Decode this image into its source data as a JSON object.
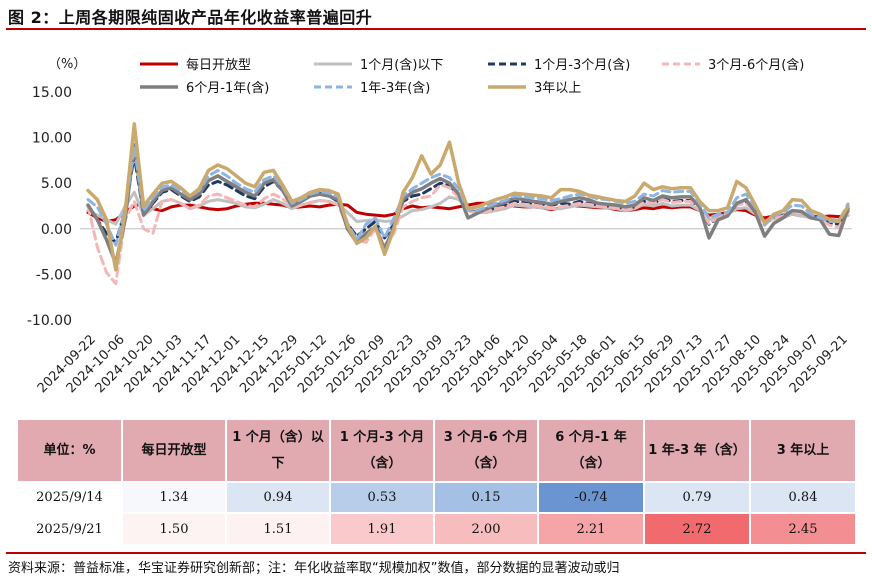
{
  "title": "图 2：上周各期限纯固收产品年化收益率普遍回升",
  "source": "资料来源：普益标准，华宝证券研究创新部；注：年化收益率取“规模加权”数值，部分数据的显著波动或归",
  "chart_data": {
    "type": "line",
    "ylabel": "（%）",
    "ylim": [
      -10,
      15
    ],
    "yticks": [
      "15.00",
      "10.00",
      "5.00",
      "0.00",
      "-5.00",
      "-10.00"
    ],
    "xtick_labels": [
      "2024-09-22",
      "2024-10-06",
      "2024-10-20",
      "2024-11-03",
      "2024-11-17",
      "2024-12-01",
      "2024-12-15",
      "2024-12-29",
      "2025-01-12",
      "2025-01-26",
      "2025-02-09",
      "2025-02-23",
      "2025-03-09",
      "2025-03-23",
      "2025-04-06",
      "2025-04-20",
      "2025-05-04",
      "2025-05-18",
      "2025-06-01",
      "2025-06-15",
      "2025-06-29",
      "2025-07-13",
      "2025-07-27",
      "2025-08-10",
      "2025-08-24",
      "2025-09-07",
      "2025-09-21"
    ],
    "x_start": "2024-09-22",
    "x_end": "2025-09-21",
    "series": [
      {
        "name": "每日开放型",
        "color": "#c00000",
        "dash": "solid",
        "width": 3,
        "values": [
          1.8,
          1.2,
          0.8,
          1.0,
          1.8,
          2.5,
          2.8,
          2.2,
          2.0,
          2.4,
          2.6,
          2.6,
          2.4,
          2.2,
          2.1,
          2.2,
          2.5,
          2.7,
          2.8,
          2.8,
          2.7,
          2.6,
          2.3,
          2.4,
          2.5,
          2.4,
          2.6,
          2.7,
          2.6,
          1.8,
          1.6,
          1.5,
          1.4,
          1.6,
          2.2,
          2.5,
          2.3,
          2.4,
          2.3,
          2.2,
          2.4,
          2.6,
          2.8,
          2.8,
          2.7,
          2.6,
          2.5,
          2.4,
          2.4,
          2.3,
          2.1,
          2.3,
          2.5,
          2.5,
          2.4,
          2.3,
          2.3,
          2.1,
          2.0,
          2.1,
          2.3,
          2.2,
          2.4,
          2.3,
          2.4,
          2.4,
          2.0,
          1.5,
          1.6,
          1.8,
          2.1,
          2.0,
          1.5,
          1.2,
          1.4,
          1.5,
          1.6,
          1.4,
          1.4,
          1.3,
          1.4,
          1.34,
          1.5
        ]
      },
      {
        "name": "1个月(含)以下",
        "color": "#c0c0c0",
        "dash": "solid",
        "width": 3,
        "values": [
          2.0,
          1.5,
          1.0,
          0.5,
          2.5,
          4.0,
          1.5,
          2.2,
          3.0,
          3.2,
          2.8,
          2.2,
          2.5,
          3.0,
          3.2,
          3.0,
          2.8,
          2.4,
          2.3,
          2.7,
          3.2,
          2.8,
          2.2,
          2.6,
          2.9,
          3.1,
          3.0,
          2.7,
          1.8,
          0.8,
          0.9,
          1.0,
          0.8,
          0.9,
          1.4,
          2.0,
          2.1,
          2.4,
          2.8,
          3.5,
          3.2,
          2.2,
          1.8,
          1.8,
          2.0,
          2.2,
          2.6,
          2.5,
          2.4,
          2.3,
          2.2,
          2.2,
          2.4,
          2.6,
          2.5,
          2.4,
          2.3,
          2.2,
          2.0,
          2.2,
          2.7,
          2.5,
          2.8,
          2.5,
          2.6,
          2.6,
          2.0,
          1.0,
          1.3,
          1.6,
          2.2,
          2.3,
          1.6,
          0.9,
          1.1,
          1.2,
          1.6,
          1.4,
          1.2,
          1.3,
          1.1,
          0.94,
          1.51
        ]
      },
      {
        "name": "1个月-3个月(含)",
        "color": "#1f3864",
        "dash": "8,5",
        "width": 3,
        "values": [
          2.5,
          1.0,
          -0.5,
          -1.5,
          2.0,
          8.0,
          1.5,
          2.8,
          4.0,
          4.3,
          3.6,
          3.0,
          3.5,
          4.8,
          5.2,
          4.8,
          4.2,
          3.6,
          3.3,
          4.6,
          5.2,
          4.2,
          2.6,
          3.0,
          3.6,
          3.9,
          3.6,
          3.0,
          0.5,
          -0.8,
          0.0,
          0.8,
          -1.0,
          0.5,
          3.0,
          3.6,
          3.8,
          4.4,
          5.0,
          4.8,
          3.6,
          2.0,
          1.8,
          2.0,
          2.3,
          2.6,
          3.0,
          2.9,
          2.8,
          2.7,
          2.6,
          2.8,
          2.7,
          3.0,
          2.8,
          2.6,
          2.5,
          2.4,
          2.2,
          2.4,
          3.0,
          2.8,
          3.3,
          3.0,
          3.1,
          3.1,
          2.2,
          0.5,
          1.2,
          1.6,
          2.6,
          3.0,
          2.0,
          0.8,
          1.2,
          1.5,
          2.0,
          1.8,
          1.3,
          1.2,
          0.6,
          0.53,
          1.91
        ]
      },
      {
        "name": "3个月-6个月(含)",
        "color": "#f4b6b6",
        "dash": "8,5",
        "width": 3,
        "values": [
          2.5,
          -2.0,
          -4.8,
          -6.0,
          1.0,
          3.0,
          0.0,
          -0.5,
          3.0,
          3.2,
          2.8,
          2.2,
          2.6,
          3.6,
          3.8,
          3.4,
          3.0,
          2.6,
          2.4,
          3.3,
          3.8,
          3.3,
          2.4,
          2.6,
          2.9,
          3.1,
          3.0,
          2.6,
          0.2,
          -1.2,
          -1.5,
          0.0,
          -1.8,
          -0.5,
          2.4,
          3.0,
          3.4,
          3.6,
          4.8,
          4.5,
          3.4,
          2.0,
          1.7,
          1.9,
          2.2,
          2.4,
          2.8,
          2.7,
          2.6,
          2.5,
          2.3,
          2.4,
          2.6,
          2.8,
          2.7,
          2.5,
          2.4,
          2.3,
          2.1,
          2.3,
          2.9,
          2.8,
          3.2,
          2.9,
          3.0,
          3.0,
          2.2,
          0.6,
          1.2,
          1.6,
          2.6,
          2.8,
          1.8,
          0.6,
          1.1,
          1.4,
          2.0,
          1.8,
          1.3,
          1.0,
          0.4,
          0.15,
          2.0
        ]
      },
      {
        "name": "6个月-1年(含)",
        "color": "#7f7f7f",
        "dash": "solid",
        "width": 3.5,
        "values": [
          2.6,
          1.0,
          -1.2,
          -3.8,
          1.0,
          9.2,
          1.5,
          3.0,
          4.2,
          4.5,
          3.8,
          3.2,
          3.8,
          5.3,
          5.8,
          5.2,
          4.6,
          4.0,
          3.6,
          5.0,
          5.4,
          4.2,
          2.5,
          3.0,
          3.6,
          3.8,
          3.6,
          3.2,
          0.0,
          -1.5,
          -0.5,
          0.2,
          -2.2,
          0.2,
          3.2,
          4.0,
          4.4,
          5.0,
          5.5,
          5.0,
          3.8,
          1.2,
          1.7,
          2.2,
          2.6,
          2.9,
          3.4,
          3.2,
          3.0,
          2.9,
          2.7,
          3.0,
          3.2,
          3.4,
          3.2,
          2.8,
          2.7,
          2.6,
          2.4,
          2.6,
          3.4,
          3.1,
          3.6,
          3.4,
          3.5,
          3.5,
          2.4,
          -1.0,
          1.0,
          1.4,
          2.8,
          3.2,
          1.8,
          -0.8,
          0.6,
          1.2,
          2.0,
          1.9,
          1.2,
          1.0,
          -0.6,
          -0.74,
          2.21
        ]
      },
      {
        "name": "1年-3年(含)",
        "color": "#8eb4e3",
        "dash": "8,5",
        "width": 3,
        "values": [
          3.2,
          2.4,
          0.5,
          -1.8,
          2.2,
          9.0,
          2.0,
          3.4,
          4.6,
          4.8,
          4.2,
          3.6,
          4.2,
          5.8,
          6.4,
          5.8,
          5.0,
          4.4,
          4.0,
          5.4,
          5.8,
          4.6,
          2.8,
          3.2,
          3.8,
          4.1,
          3.9,
          3.5,
          0.6,
          -1.2,
          0.5,
          1.2,
          -1.0,
          1.2,
          3.6,
          4.4,
          5.0,
          5.6,
          6.0,
          5.6,
          4.4,
          2.0,
          2.0,
          2.4,
          2.8,
          3.1,
          3.6,
          3.5,
          3.4,
          3.3,
          3.1,
          3.3,
          3.6,
          3.8,
          3.6,
          3.3,
          3.2,
          3.0,
          2.8,
          3.0,
          3.8,
          3.6,
          4.2,
          4.0,
          4.1,
          4.1,
          2.8,
          1.2,
          1.6,
          1.8,
          3.4,
          3.8,
          2.4,
          0.4,
          1.4,
          1.8,
          2.6,
          2.5,
          1.6,
          1.2,
          0.8,
          0.79,
          2.72
        ]
      },
      {
        "name": "3年以上",
        "color": "#c9a96e",
        "dash": "solid",
        "width": 3.5,
        "values": [
          4.2,
          3.2,
          1.0,
          -4.5,
          1.8,
          11.5,
          2.5,
          3.8,
          5.0,
          5.2,
          4.5,
          3.6,
          4.4,
          6.4,
          7.0,
          6.6,
          5.8,
          5.0,
          4.6,
          6.2,
          6.4,
          4.8,
          3.0,
          3.4,
          4.0,
          4.3,
          4.2,
          3.8,
          0.4,
          -1.6,
          -1.0,
          0.3,
          -2.8,
          0.0,
          4.0,
          5.6,
          8.0,
          6.0,
          7.0,
          9.5,
          5.0,
          2.2,
          2.4,
          2.8,
          3.2,
          3.5,
          3.9,
          3.8,
          3.7,
          3.6,
          3.4,
          4.3,
          4.3,
          4.1,
          3.7,
          3.5,
          3.3,
          3.1,
          3.0,
          3.6,
          5.0,
          4.3,
          4.6,
          4.4,
          4.5,
          4.5,
          3.0,
          2.0,
          2.0,
          2.3,
          5.2,
          4.5,
          2.6,
          0.6,
          1.6,
          2.0,
          3.2,
          3.1,
          2.0,
          1.6,
          1.0,
          0.84,
          2.45
        ]
      }
    ],
    "table": {
      "headers": [
        "单位：%",
        "每日开放型",
        "1 个月（含）以下",
        "1 个月-3 个月（含）",
        "3 个月-6 个月（含）",
        "6 个月-1 年（含）",
        "1 年-3 年（含）",
        "3 年以上"
      ],
      "rows": [
        {
          "date": "2025/9/14",
          "values": [
            "1.34",
            "0.94",
            "0.53",
            "0.15",
            "-0.74",
            "0.79",
            "0.84"
          ],
          "colors": [
            "#f6f8fc",
            "#dbe5f3",
            "#b7cde9",
            "#a4c0e4",
            "#6a95d0",
            "#dbe5f3",
            "#dbe5f3"
          ]
        },
        {
          "date": "2025/9/21",
          "values": [
            "1.50",
            "1.51",
            "1.91",
            "2.00",
            "2.21",
            "2.72",
            "2.45"
          ],
          "colors": [
            "#fdf3f3",
            "#fdf1f2",
            "#f9c9cb",
            "#f7bcbe",
            "#f5a4a7",
            "#f06a6e",
            "#f38f92"
          ]
        }
      ]
    }
  }
}
